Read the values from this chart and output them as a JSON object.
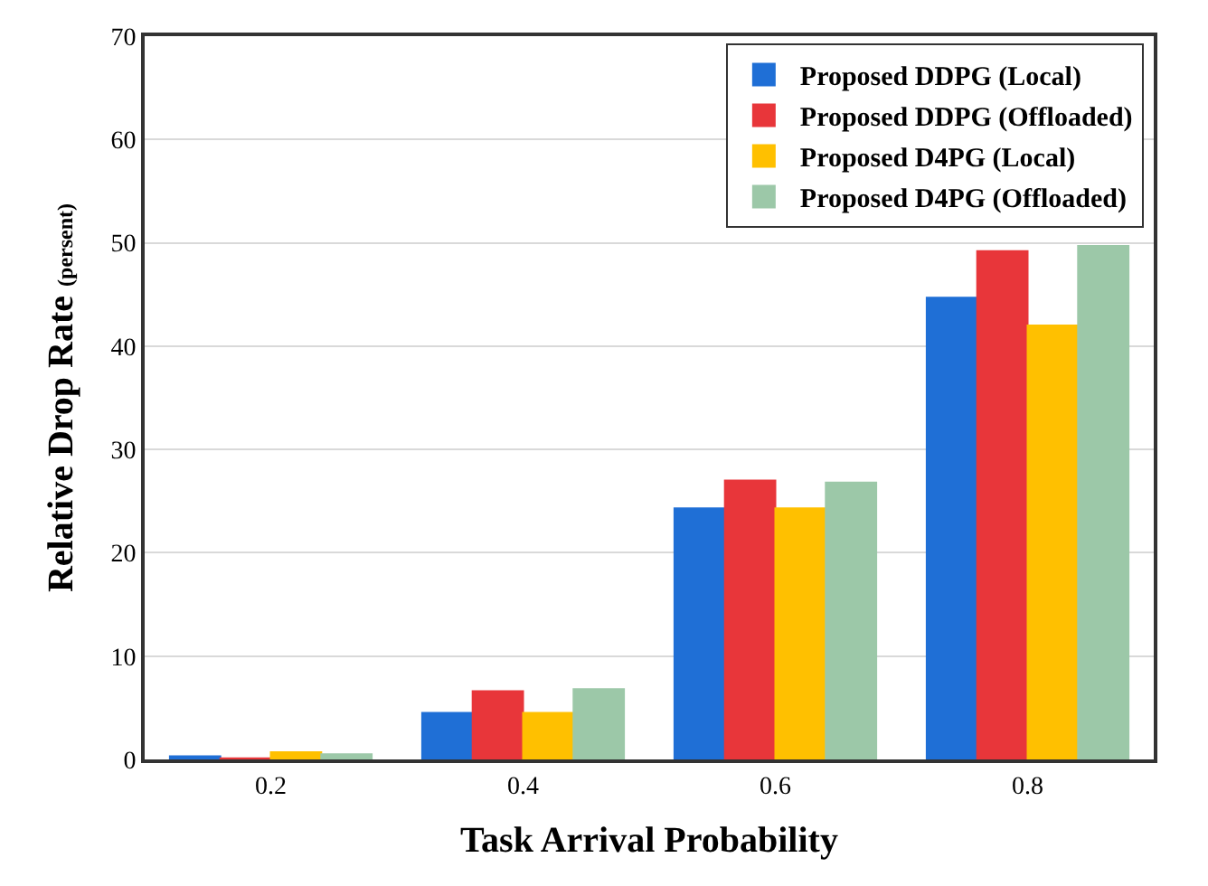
{
  "chart_data": {
    "type": "bar",
    "xlabel": "Task Arrival Probability",
    "ylabel": "Relative Drop Rate $_{(persent)}$",
    "categories": [
      "0.2",
      "0.4",
      "0.6",
      "0.8"
    ],
    "series": [
      {
        "name": "Proposed DDPG (Local)",
        "color": "#1f6fd6",
        "values": [
          0.3,
          4.5,
          24.3,
          44.7
        ]
      },
      {
        "name": "Proposed DDPG (Offloaded)",
        "color": "#e8363a",
        "values": [
          0.1,
          6.6,
          27.0,
          49.2
        ]
      },
      {
        "name": "Proposed D4PG (Local)",
        "color": "#ffc000",
        "values": [
          0.7,
          4.5,
          24.3,
          42.0
        ]
      },
      {
        "name": "Proposed D4PG (Offloaded)",
        "color": "#9cc8a8",
        "values": [
          0.5,
          6.8,
          26.8,
          49.7
        ]
      }
    ],
    "ylim": [
      0,
      70
    ],
    "yticks": [
      0,
      10,
      20,
      30,
      40,
      50,
      60,
      70
    ],
    "grid": "y",
    "legend": "top right"
  }
}
